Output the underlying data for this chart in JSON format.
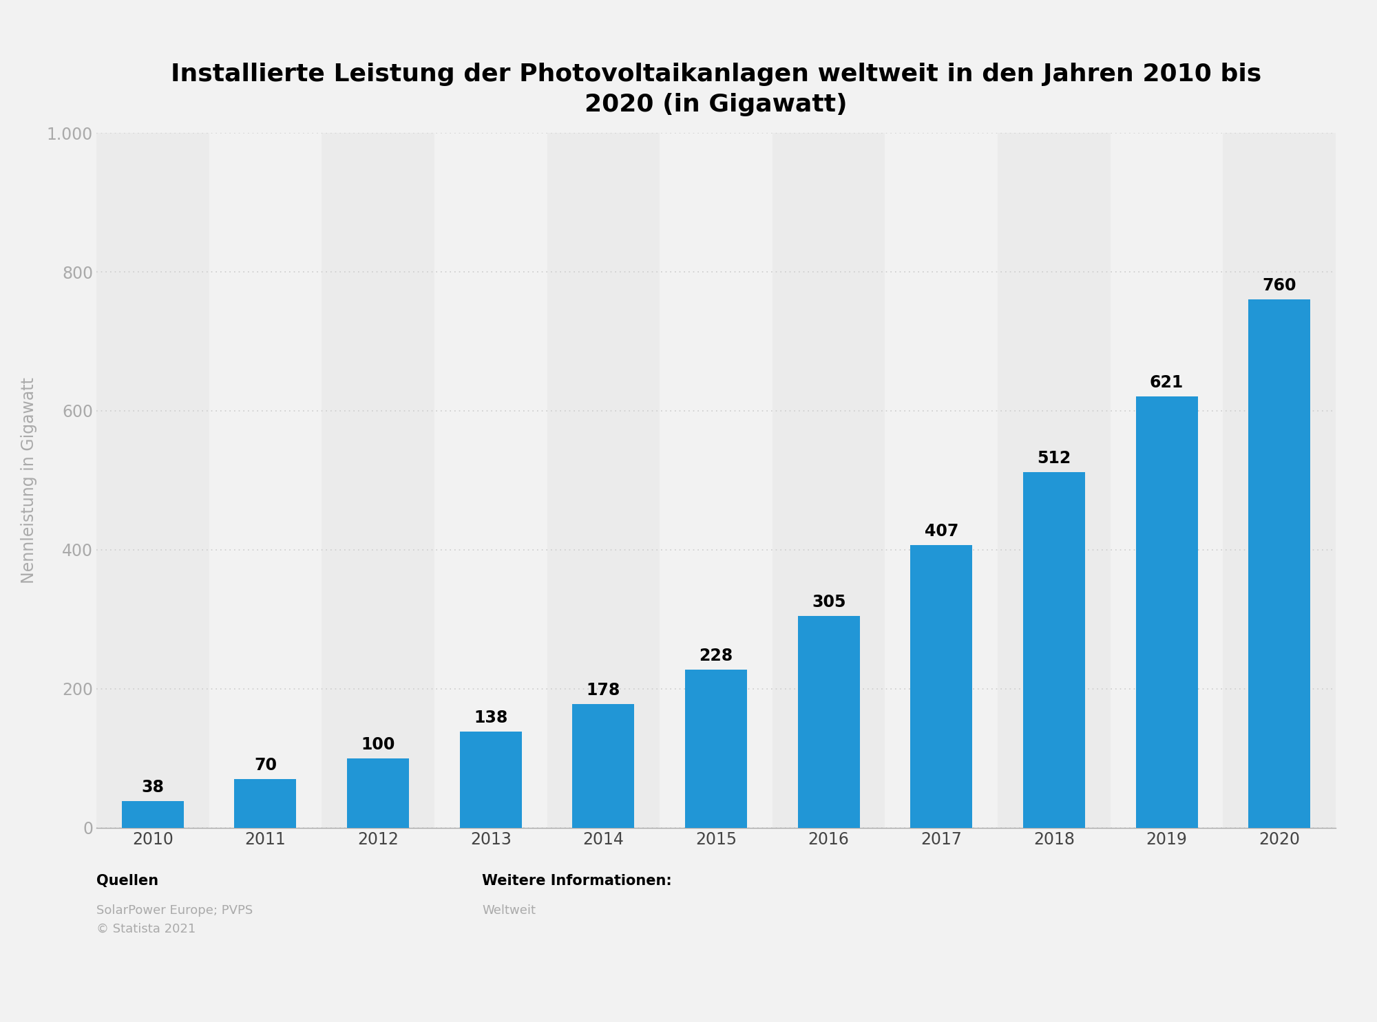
{
  "title_line1": "Installierte Leistung der Photovoltaikanlagen weltweit in den Jahren 2010 bis",
  "title_line2": "2020 (in Gigawatt)",
  "ylabel": "Nennleistung in Gigawatt",
  "years": [
    "2010",
    "2011",
    "2012",
    "2013",
    "2014",
    "2015",
    "2016",
    "2017",
    "2018",
    "2019",
    "2020"
  ],
  "values": [
    38,
    70,
    100,
    138,
    178,
    228,
    305,
    407,
    512,
    621,
    760
  ],
  "bar_color": "#2196d6",
  "ylim": [
    0,
    1000
  ],
  "yticks": [
    0,
    200,
    400,
    600,
    800,
    1000
  ],
  "ytick_labels": [
    "0",
    "200",
    "400",
    "600",
    "800",
    "1.000"
  ],
  "background_color": "#f2f2f2",
  "col_band_color_light": "#ebebeb",
  "col_band_color_dark": "#f2f2f2",
  "title_fontsize": 26,
  "label_fontsize": 17,
  "tick_fontsize": 17,
  "bar_label_fontsize": 17,
  "footer_quellen_label": "Quellen",
  "footer_quellen_text": "SolarPower Europe; PVPS\n© Statista 2021",
  "footer_weitere_label": "Weitere Informationen:",
  "footer_weitere_text": "Weltweit"
}
